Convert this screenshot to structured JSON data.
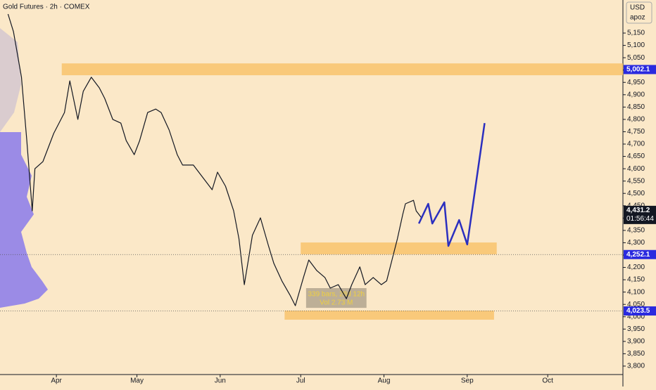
{
  "chart_data": {
    "type": "line",
    "title": "Gold Futures · 2h · COMEX",
    "currency": "USD",
    "scale_label": "apoz",
    "xlim": [
      -21,
      211
    ],
    "ylim": [
      3760,
      5284
    ],
    "xticks": [
      {
        "value": 0,
        "label": "Apr"
      },
      {
        "value": 30,
        "label": "May"
      },
      {
        "value": 61,
        "label": "Jun"
      },
      {
        "value": 91,
        "label": "Jul"
      },
      {
        "value": 122,
        "label": "Aug"
      },
      {
        "value": 153,
        "label": "Sep"
      },
      {
        "value": 183,
        "label": "Oct"
      }
    ],
    "yticks": [
      {
        "value": 5150,
        "label": "5,150"
      },
      {
        "value": 5100,
        "label": "5,100"
      },
      {
        "value": 5050,
        "label": "5,050"
      },
      {
        "value": 5000,
        "label": "5,000"
      },
      {
        "value": 4950,
        "label": "4,950"
      },
      {
        "value": 4900,
        "label": "4,900"
      },
      {
        "value": 4850,
        "label": "4,850"
      },
      {
        "value": 4800,
        "label": "4,800"
      },
      {
        "value": 4750,
        "label": "4,750"
      },
      {
        "value": 4700,
        "label": "4,700"
      },
      {
        "value": 4650,
        "label": "4,650"
      },
      {
        "value": 4600,
        "label": "4,600"
      },
      {
        "value": 4550,
        "label": "4,550"
      },
      {
        "value": 4500,
        "label": "4,500"
      },
      {
        "value": 4450,
        "label": "4,450"
      },
      {
        "value": 4400,
        "label": "4,400"
      },
      {
        "value": 4350,
        "label": "4,350"
      },
      {
        "value": 4300,
        "label": "4,300"
      },
      {
        "value": 4250,
        "label": "4,250"
      },
      {
        "value": 4200,
        "label": "4,200"
      },
      {
        "value": 4150,
        "label": "4,150"
      },
      {
        "value": 4100,
        "label": "4,100"
      },
      {
        "value": 4050,
        "label": "4,050"
      },
      {
        "value": 4000,
        "label": "4,000"
      },
      {
        "value": 3950,
        "label": "3,950"
      },
      {
        "value": 3900,
        "label": "3,900"
      },
      {
        "value": 3850,
        "label": "3,850"
      },
      {
        "value": 3800,
        "label": "3,800"
      }
    ],
    "series": [
      {
        "name": "Price",
        "color": "#131722",
        "width": 1.2,
        "x": [
          -18,
          -16,
          -13,
          -11,
          -9,
          -8,
          -5,
          -1,
          3,
          5,
          8,
          10,
          13,
          16,
          18,
          21,
          24,
          26,
          29,
          31,
          34,
          37,
          39,
          42,
          45,
          47,
          51,
          55,
          58,
          60,
          63,
          66,
          68,
          70,
          73,
          76,
          79,
          81,
          84,
          87,
          89,
          92,
          94,
          97,
          100,
          102,
          105,
          108,
          110,
          113,
          115,
          118,
          121,
          123,
          125,
          127,
          129,
          130,
          133,
          134,
          136
        ],
        "values": [
          5227,
          5156,
          4971,
          4714,
          4429,
          4600,
          4629,
          4743,
          4828,
          4956,
          4800,
          4914,
          4971,
          4928,
          4885,
          4800,
          4785,
          4714,
          4657,
          4714,
          4828,
          4842,
          4828,
          4757,
          4657,
          4615,
          4615,
          4558,
          4515,
          4586,
          4529,
          4430,
          4316,
          4130,
          4330,
          4401,
          4287,
          4216,
          4145,
          4088,
          4045,
          4159,
          4230,
          4187,
          4159,
          4116,
          4130,
          4073,
          4130,
          4202,
          4130,
          4159,
          4130,
          4145,
          4230,
          4316,
          4415,
          4458,
          4472,
          4429,
          4401
        ]
      },
      {
        "name": "Projection",
        "color": "#2b2fbf",
        "width": 2.5,
        "x": [
          135,
          138.5,
          140,
          144.5,
          146,
          150,
          153,
          159.5
        ],
        "values": [
          4378,
          4458,
          4378,
          4464,
          4287,
          4392,
          4293,
          4785
        ]
      }
    ],
    "zones": [
      {
        "x0": 2,
        "x1": 211,
        "low": 4979,
        "high": 5027,
        "color": "#f9c067"
      },
      {
        "x0": 91,
        "x1": 164,
        "low": 4253,
        "high": 4301,
        "color": "#f9c067"
      },
      {
        "x0": 85,
        "x1": 163,
        "low": 3988,
        "high": 4025,
        "color": "#f9c067"
      }
    ],
    "measure": {
      "x0": 93,
      "x1": 115.5,
      "low": 4036,
      "high": 4116,
      "lines": [
        "339 bars, 28d 12h",
        "Vol 2.73 M"
      ]
    },
    "price_labels": [
      {
        "value": 5002.1,
        "label": "5,002.1",
        "color": "#2a2adf",
        "dotted": false
      },
      {
        "value": 4431.2,
        "label": "4,431.2",
        "color": "#131722",
        "countdown": "01:56:44",
        "dotted": false
      },
      {
        "value": 4252.1,
        "label": "4,252.1",
        "color": "#2a2adf",
        "dotted": true
      },
      {
        "value": 4023.5,
        "label": "4,023.5",
        "color": "#2a2adf",
        "dotted": true
      }
    ]
  }
}
